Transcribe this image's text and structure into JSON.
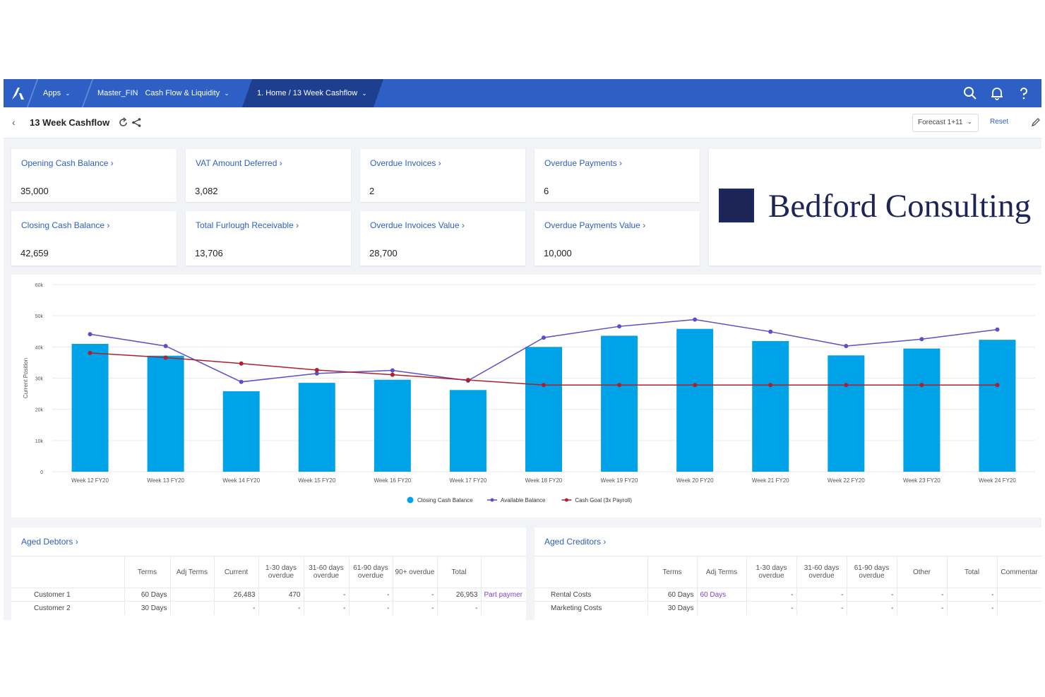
{
  "nav": {
    "apps": "Apps",
    "model": "Master_FIN",
    "app_name": "Cash Flow & Liquidity",
    "breadcrumb": "1. Home / 13 Week Cashflow"
  },
  "titlebar": {
    "title": "13 Week Cashflow",
    "forecast_select": "Forecast 1+11",
    "reset": "Reset"
  },
  "kpis": [
    {
      "label": "Opening Cash Balance",
      "value": "35,000"
    },
    {
      "label": "VAT Amount Deferred",
      "value": "3,082"
    },
    {
      "label": "Overdue Invoices",
      "value": "2"
    },
    {
      "label": "Overdue Payments",
      "value": "6"
    },
    {
      "label": "Closing Cash Balance",
      "value": "42,659"
    },
    {
      "label": "Total Furlough Receivable",
      "value": "13,706"
    },
    {
      "label": "Overdue Invoices Value",
      "value": "28,700"
    },
    {
      "label": "Overdue Payments Value",
      "value": "10,000"
    }
  ],
  "brand": {
    "name": "Bedford Consulting"
  },
  "chart_data": {
    "type": "bar",
    "categories": [
      "Week 12 FY20",
      "Week 13 FY20",
      "Week 14 FY20",
      "Week 15 FY20",
      "Week 16 FY20",
      "Week 17 FY20",
      "Week 18 FY20",
      "Week 19 FY20",
      "Week 20 FY20",
      "Week 21 FY20",
      "Week 22 FY20",
      "Week 23 FY20",
      "Week 24 FY20"
    ],
    "series": [
      {
        "name": "Closing Cash Balance",
        "type": "bar",
        "color": "#00a3e8",
        "values": [
          41000,
          37200,
          25800,
          28500,
          29500,
          26200,
          40000,
          43600,
          45800,
          41900,
          37300,
          39500,
          42300
        ]
      },
      {
        "name": "Available Balance",
        "type": "line",
        "color": "#5a4fc8",
        "values": [
          44100,
          40300,
          28800,
          31500,
          32500,
          29200,
          43000,
          46600,
          48800,
          44900,
          40300,
          42500,
          45600
        ]
      },
      {
        "name": "Cash Goal (3x Payroll)",
        "type": "line",
        "color": "#b0202a",
        "values": [
          38100,
          36600,
          34700,
          32600,
          31100,
          29400,
          27800,
          27800,
          27800,
          27800,
          27800,
          27800,
          27800
        ]
      }
    ],
    "ylabel": "Current Position",
    "yticks": [
      "0",
      "10k",
      "20k",
      "30k",
      "40k",
      "50k",
      "60k"
    ],
    "ylim": [
      0,
      60000
    ],
    "grid": true,
    "legend_position": "bottom-center"
  },
  "debtors": {
    "title": "Aged Debtors",
    "headers": [
      "",
      "Terms",
      "Adj Terms",
      "Current",
      "1-30 days overdue",
      "31-60 days overdue",
      "61-90 days overdue",
      "90+ overdue",
      "Total",
      ""
    ],
    "rows": [
      [
        "Customer 1",
        "60 Days",
        "",
        "26,483",
        "470",
        "-",
        "-",
        "-",
        "26,953",
        "Part paymer"
      ],
      [
        "Customer 2",
        "30 Days",
        "",
        "-",
        "-",
        "-",
        "-",
        "-",
        "-",
        ""
      ]
    ]
  },
  "creditors": {
    "title": "Aged Creditors",
    "headers": [
      "",
      "Terms",
      "Adj Terms",
      "1-30 days overdue",
      "31-60 days overdue",
      "61-90 days overdue",
      "Other",
      "Total",
      "Commentar"
    ],
    "rows": [
      [
        "Rental Costs",
        "60 Days",
        "60 Days",
        "-",
        "-",
        "-",
        "-",
        "-",
        ""
      ],
      [
        "Marketing Costs",
        "30 Days",
        "",
        "-",
        "-",
        "-",
        "-",
        "-",
        ""
      ]
    ]
  }
}
